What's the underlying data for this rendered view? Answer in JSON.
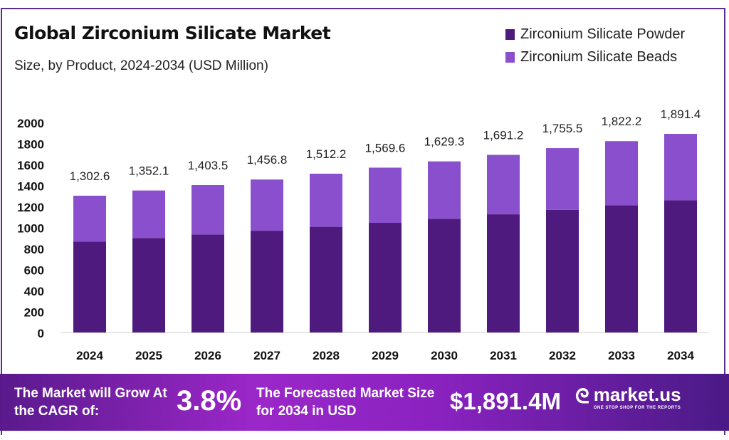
{
  "header": {
    "title": "Global Zirconium Silicate Market",
    "subtitle": "Size, by Product, 2024-2034 (USD Million)"
  },
  "chart_data": {
    "type": "bar",
    "stacked": true,
    "categories": [
      "2024",
      "2025",
      "2026",
      "2027",
      "2028",
      "2029",
      "2030",
      "2031",
      "2032",
      "2033",
      "2034"
    ],
    "series": [
      {
        "name": "Zirconium Silicate Powder",
        "color": "#4e1a7e",
        "values": [
          866,
          899,
          933,
          969,
          1006,
          1044,
          1083,
          1125,
          1167,
          1212,
          1258
        ]
      },
      {
        "name": "Zirconium Silicate Beads",
        "color": "#8a4fcc",
        "values": [
          436.6,
          453.1,
          470.5,
          487.8,
          506.2,
          525.6,
          546.3,
          566.2,
          588.5,
          610.2,
          633.4
        ]
      }
    ],
    "totals": [
      1302.6,
      1352.1,
      1403.5,
      1456.8,
      1512.2,
      1569.6,
      1629.3,
      1691.2,
      1755.5,
      1822.2,
      1891.4
    ],
    "total_labels": [
      "1,302.6",
      "1,352.1",
      "1,403.5",
      "1,456.8",
      "1,512.2",
      "1,569.6",
      "1,629.3",
      "1,691.2",
      "1,755.5",
      "1,822.2",
      "1,891.4"
    ],
    "yticks": [
      "0",
      "200",
      "400",
      "600",
      "800",
      "1000",
      "1200",
      "1400",
      "1600",
      "1800",
      "2000"
    ],
    "ylim": [
      0,
      2000
    ],
    "grid": false,
    "legend_position": "top-right"
  },
  "banner": {
    "cagr_label": "The Market will Grow At the CAGR of:",
    "cagr_value": "3.8%",
    "forecast_label": "The Forecasted Market Size for 2034 in USD",
    "forecast_value": "$1,891.4M",
    "logo_text": "market.us",
    "logo_tagline": "ONE STOP SHOP FOR THE REPORTS"
  }
}
